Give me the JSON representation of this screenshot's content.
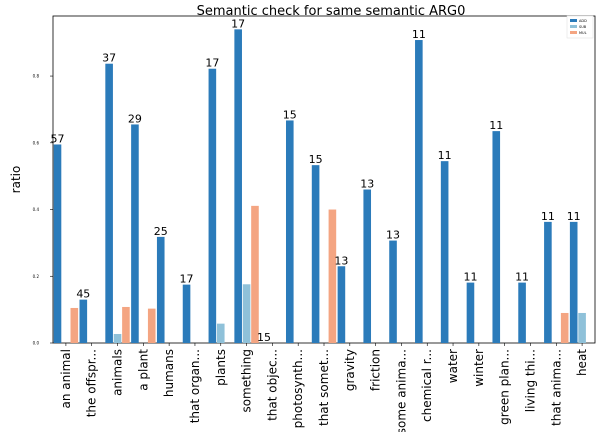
{
  "chart_data": {
    "type": "bar",
    "title": "Semantic check for same semantic ARG0",
    "xlabel": "",
    "ylabel": "ratio",
    "ylim": [
      0,
      0.98
    ],
    "yticks": [
      "0.0",
      "0.2",
      "0.4",
      "0.6",
      "0.8"
    ],
    "ytick_values": [
      0,
      0.2,
      0.4,
      0.6,
      0.8
    ],
    "grid": false,
    "legend_position": "top-right",
    "categories": [
      "an animal",
      "the offspr...",
      "animals",
      "a plant",
      "humans",
      "that organ...",
      "plants",
      "something",
      "that objec...",
      "photosynth...",
      "that somet...",
      "gravity",
      "friction",
      "some anima...",
      "chemical r...",
      "water",
      "winter",
      "green plan...",
      "living thi...",
      "that anima...",
      "heat"
    ],
    "series": [
      {
        "name": "ADD",
        "color": "#2b7bba",
        "values": [
          0.595,
          0.13,
          0.837,
          0.655,
          0.318,
          0.175,
          0.822,
          0.94,
          0,
          0.667,
          0.533,
          0.23,
          0.46,
          0.307,
          0.908,
          0.545,
          0.181,
          0.635,
          0.181,
          0.363,
          0.363
        ]
      },
      {
        "name": "SUB",
        "color": "#8fc1d9",
        "values": [
          0,
          0,
          0.027,
          0,
          0,
          0,
          0.058,
          0.176,
          0,
          0,
          0,
          0,
          0,
          0,
          0,
          0,
          0,
          0,
          0,
          0,
          0.09
        ]
      },
      {
        "name": "MUL",
        "color": "#f4a582",
        "values": [
          0.105,
          0,
          0.108,
          0.103,
          0,
          0,
          0,
          0.411,
          0,
          0,
          0.4,
          0,
          0,
          0,
          0,
          0,
          0,
          0,
          0,
          0.09,
          0
        ]
      }
    ],
    "annotations": [
      {
        "category_index": 0,
        "series": 0,
        "text": "57"
      },
      {
        "category_index": 1,
        "series": 0,
        "text": "45"
      },
      {
        "category_index": 2,
        "series": 0,
        "text": "37"
      },
      {
        "category_index": 3,
        "series": 0,
        "text": "29"
      },
      {
        "category_index": 4,
        "series": 0,
        "text": "25"
      },
      {
        "category_index": 5,
        "series": 0,
        "text": "17"
      },
      {
        "category_index": 6,
        "series": 0,
        "text": "17"
      },
      {
        "category_index": 7,
        "series": 0,
        "text": "17"
      },
      {
        "category_index": 8,
        "series": 0,
        "text": "15"
      },
      {
        "category_index": 9,
        "series": 0,
        "text": "15"
      },
      {
        "category_index": 10,
        "series": 0,
        "text": "15"
      },
      {
        "category_index": 11,
        "series": 0,
        "text": "13"
      },
      {
        "category_index": 12,
        "series": 0,
        "text": "13"
      },
      {
        "category_index": 13,
        "series": 0,
        "text": "13"
      },
      {
        "category_index": 14,
        "series": 0,
        "text": "11"
      },
      {
        "category_index": 15,
        "series": 0,
        "text": "11"
      },
      {
        "category_index": 16,
        "series": 0,
        "text": "11"
      },
      {
        "category_index": 17,
        "series": 0,
        "text": "11"
      },
      {
        "category_index": 18,
        "series": 0,
        "text": "11"
      },
      {
        "category_index": 19,
        "series": 0,
        "text": "11"
      },
      {
        "category_index": 20,
        "series": 0,
        "text": "11"
      }
    ]
  }
}
